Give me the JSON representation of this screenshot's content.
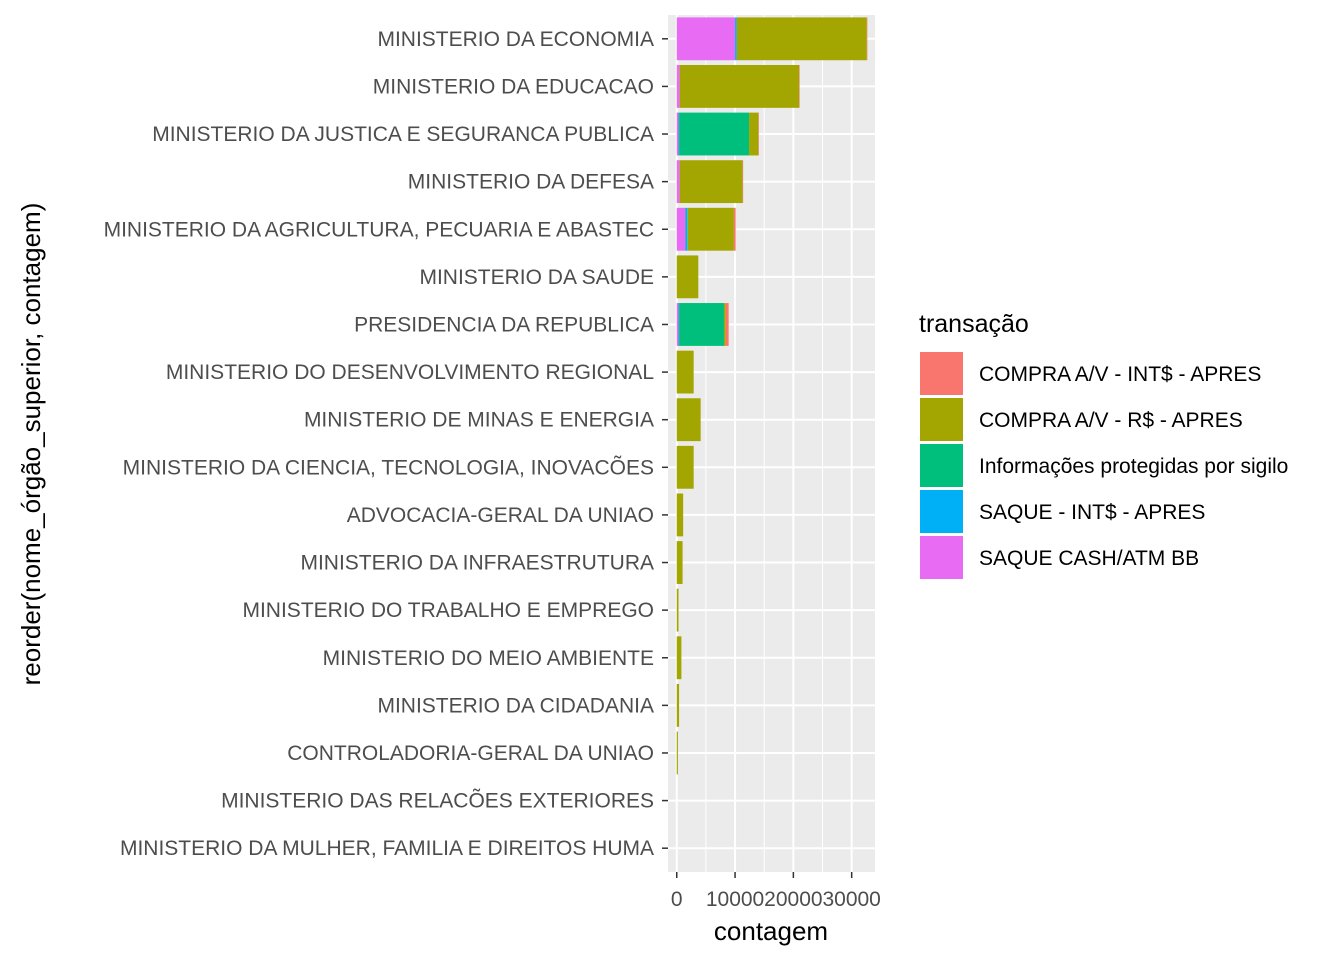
{
  "chart_data": {
    "type": "bar",
    "orientation": "horizontal",
    "stacked": true,
    "xlabel": "contagem",
    "ylabel": "reorder(nome_órgão_superior, contagem)",
    "xlim": [
      -1500,
      34000
    ],
    "x_ticks": [
      "0",
      "10000",
      "20000",
      "30000"
    ],
    "x_tick_values": [
      0,
      10000,
      20000,
      30000
    ],
    "grid": true,
    "legend_title": "transação",
    "legend_position": "right",
    "categories": [
      "MINISTERIO DA ECONOMIA",
      "MINISTERIO DA EDUCACAO",
      "MINISTERIO DA JUSTICA E SEGURANCA PUBLICA",
      "MINISTERIO DA DEFESA",
      "MINISTERIO DA AGRICULTURA, PECUARIA E ABASTEC",
      "MINISTERIO DA SAUDE",
      "PRESIDENCIA DA REPUBLICA",
      "MINISTERIO DO DESENVOLVIMENTO REGIONAL",
      "MINISTERIO DE MINAS E ENERGIA",
      "MINISTERIO DA CIENCIA, TECNOLOGIA, INOVACÕES ",
      "ADVOCACIA-GERAL DA UNIAO",
      "MINISTERIO DA INFRAESTRUTURA",
      "MINISTERIO DO TRABALHO E EMPREGO",
      "MINISTERIO DO MEIO AMBIENTE",
      "MINISTERIO DA CIDADANIA",
      "CONTROLADORIA-GERAL DA UNIAO",
      "MINISTERIO DAS RELACÕES EXTERIORES",
      "MINISTERIO DA MULHER, FAMILIA E DIREITOS HUMA"
    ],
    "series": [
      {
        "name": "COMPRA A/V - INT$ - APRES",
        "color": "#F8766D",
        "values": [
          50,
          50,
          80,
          50,
          300,
          0,
          500,
          0,
          0,
          0,
          0,
          0,
          0,
          0,
          0,
          0,
          0,
          0
        ]
      },
      {
        "name": "COMPRA A/V - R$ - APRES",
        "color": "#A3A500",
        "values": [
          22300,
          20500,
          1600,
          10800,
          7900,
          3700,
          300,
          2900,
          4100,
          2900,
          1100,
          1000,
          300,
          800,
          400,
          200,
          0,
          0
        ]
      },
      {
        "name": "Informações protegidas por sigilo",
        "color": "#00BF7D",
        "values": [
          0,
          0,
          12000,
          0,
          100,
          0,
          7700,
          0,
          0,
          0,
          0,
          0,
          0,
          0,
          0,
          0,
          0,
          0
        ]
      },
      {
        "name": "SAQUE - INT$ - APRES",
        "color": "#00B0F6",
        "values": [
          300,
          0,
          100,
          0,
          300,
          0,
          100,
          0,
          0,
          0,
          0,
          0,
          0,
          0,
          0,
          0,
          0,
          0
        ]
      },
      {
        "name": "SAQUE CASH/ATM BB",
        "color": "#E76BF3",
        "values": [
          10000,
          500,
          300,
          500,
          1500,
          0,
          300,
          0,
          0,
          0,
          0,
          0,
          0,
          0,
          0,
          0,
          0,
          0
        ]
      }
    ],
    "stack_order": [
      4,
      3,
      2,
      1,
      0
    ]
  }
}
